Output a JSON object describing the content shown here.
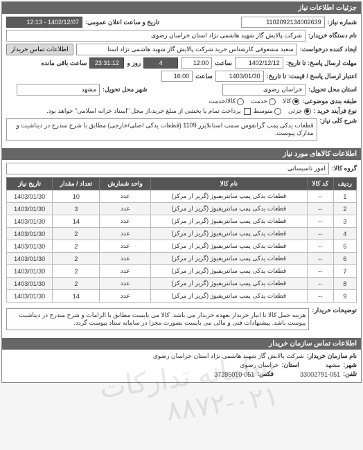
{
  "header": {
    "title": "جزئیات اطلاعات نیاز"
  },
  "meta": {
    "date_label": "تاریخ و ساعت اعلان عمومی:",
    "date_value": "1402/12/07 - 12:13",
    "req_no_label": "شماره نیاز:",
    "req_no_value": "1102092134002639",
    "buyer_label": "نام دستگاه خریدار:",
    "buyer_value": "شرکت پالایش گاز شهید هاشمی نژاد   استان خراسان رضوی",
    "requester_label": "ایجاد کننده درخواست:",
    "requester_value": "سعید مشعوفی کارشناس خرید شرکت پالایش گاز شهید هاشمی نژاد   استا",
    "contact_btn": "اطلاعات تماس خریدار",
    "deadline_reply_label": "مهلت ارسال پاسخ: تا تاریخ:",
    "deadline_reply_date": "1402/12/12",
    "time_label": "ساعت",
    "deadline_reply_time": "12:00",
    "days_left": "4",
    "days_unit": "روز و",
    "time_left": "23:31:12",
    "remaining_label": "ساعت باقی مانده",
    "quote_valid_label": "اعتبار ارسال پاسخ / قیمت: تا تاریخ:",
    "quote_valid_date": "1403/01/30",
    "quote_valid_time": "16:00",
    "delivery_province_label": "استان محل تحویل:",
    "delivery_province_value": "خراسان رضوی",
    "delivery_city_label": "شهر محل تحویل:",
    "delivery_city_value": "مشهد",
    "pack_label": "طبقه بندی موضوعی:",
    "pack_all": "کالا",
    "pack_service": "خدمت",
    "pack_both": "کالا/خدمت",
    "proc_label": "نوع فرآیند خرید :",
    "proc_small": "جزئی",
    "proc_medium": "متوسط",
    "proc_note": "پرداخت تمام یا بخشی از مبلغ خرید،از محل \"اسناد خزانه اسلامی\" خواهد بود.",
    "need_title_label": "شرح کلی نیاز:",
    "need_title_value": "قطعات یدکی پمپ گرانفوس سمپ استابلایزر 1109 (قطعات یدکی اصلی/خارجی) مطابق با شرح مندرج در دیتاشیت و مدارک پیوست."
  },
  "goods": {
    "header": "اطلاعات کالاهای مورد نیاز",
    "group_label": "گروه کالا:",
    "group_value": "امور تاسیساتی",
    "columns": [
      "ردیف",
      "کد کالا",
      "نام کالا",
      "واحد شمارش",
      "تعداد / مقدار",
      "تاریخ نیاز"
    ],
    "rows": [
      [
        "1",
        "--",
        "قطعات یدکی پمپ سانتریفیوژ (گریز از مرکز)",
        "عدد",
        "10",
        "1403/01/30"
      ],
      [
        "2",
        "--",
        "قطعات یدکی پمپ سانتریفیوژ (گریز از مرکز)",
        "عدد",
        "3",
        "1403/01/30"
      ],
      [
        "3",
        "--",
        "قطعات یدکی پمپ سانتریفیوژ (گریز از مرکز)",
        "عدد",
        "14",
        "1403/01/30"
      ],
      [
        "4",
        "--",
        "قطعات یدکی پمپ سانتریفیوژ (گریز از مرکز)",
        "عدد",
        "2",
        "1403/01/30"
      ],
      [
        "5",
        "--",
        "قطعات یدکی پمپ سانتریفیوژ (گریز از مرکز)",
        "عدد",
        "2",
        "1403/01/30"
      ],
      [
        "6",
        "--",
        "قطعات یدکی پمپ سانتریفیوژ (گریز از مرکز)",
        "عدد",
        "2",
        "1403/01/30"
      ],
      [
        "7",
        "--",
        "قطعات یدکی پمپ سانتریفیوژ (گریز از مرکز)",
        "عدد",
        "2",
        "1403/01/30"
      ],
      [
        "8",
        "--",
        "قطعات یدکی پمپ سانتریفیوژ (گریز از مرکز)",
        "عدد",
        "2",
        "1403/01/30"
      ],
      [
        "9",
        "--",
        "قطعات یدکی پمپ سانتریفیوژ (گریز از مرکز)",
        "عدد",
        "14",
        "1403/01/30"
      ]
    ],
    "notes_label": "توضیحات خریدار:",
    "notes_value": "هزینه حمل کالا تا انبار خریدار بعهده خریدار می باشد. کالا می بایست مطابق با الزامات و شرح مندرج در دیتاشیت پیوست باشد. پیشنهادات فنی و مالی می بایست بصورت مجزا در سامانه ستاد پیوست گردد."
  },
  "footer": {
    "header": "اطلاعات تماس سازمان خریدار",
    "org_label": "نام سازمان خریدار:",
    "org_value": "شرکت پالایش گاز شهید هاشمی نژاد استان خراسان رضوی",
    "city_label": "شهر:",
    "city_value": "مشهد",
    "province_label": "استان:",
    "province_value": "خراسان رضوی",
    "phone_label": "تلفن:",
    "phone_value": "33002791-051",
    "fax_label": "فکس:",
    "fax_value": "37285010-051"
  },
  "watermark": "سامانه تدارکات ۰۲۱-۸۸۷۲"
}
